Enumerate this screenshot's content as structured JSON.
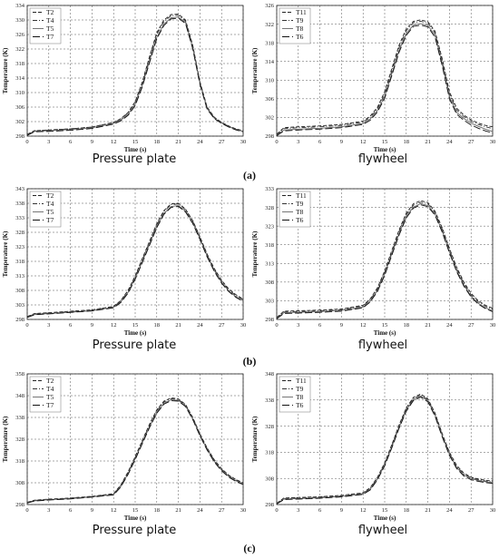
{
  "row_labels": [
    "(a)",
    "(b)",
    "(c)"
  ],
  "chart_data": [
    {
      "type": "line",
      "caption": "Pressure plate",
      "xlabel": "Time (s)",
      "ylabel": "Temperature (K)",
      "xlim": [
        0,
        30
      ],
      "ylim": [
        298,
        334
      ],
      "xticks": [
        0,
        3,
        6,
        9,
        12,
        15,
        18,
        21,
        24,
        27,
        30
      ],
      "yticks": [
        298,
        302,
        306,
        310,
        314,
        318,
        322,
        326,
        330,
        334
      ],
      "grid": true,
      "legend": "top-left",
      "x": [
        0,
        1,
        3,
        6,
        9,
        12,
        13,
        14,
        15,
        16,
        17,
        18,
        19,
        20,
        21,
        22,
        23,
        24,
        25,
        26,
        27,
        28,
        29,
        30
      ],
      "series": [
        {
          "name": "T2",
          "dash": "dash",
          "values": [
            298.5,
            299.5,
            299.7,
            300.0,
            300.5,
            301.8,
            302.8,
            304.5,
            307.5,
            313.0,
            320.0,
            326.5,
            330.0,
            331.5,
            331.6,
            330.0,
            323.0,
            313.0,
            306.0,
            303.2,
            301.8,
            300.8,
            300.0,
            299.5
          ]
        },
        {
          "name": "T4",
          "dash": "dashdot",
          "values": [
            298.4,
            299.4,
            299.7,
            300.0,
            300.5,
            301.7,
            302.7,
            304.4,
            307.2,
            312.6,
            319.5,
            326.0,
            329.6,
            331.2,
            331.3,
            329.7,
            322.7,
            312.8,
            305.8,
            303.0,
            301.7,
            300.7,
            299.9,
            299.4
          ]
        },
        {
          "name": "T5",
          "dash": "solid",
          "values": [
            298.3,
            299.3,
            299.5,
            299.8,
            300.3,
            301.5,
            302.4,
            304.0,
            306.8,
            312.0,
            318.8,
            325.2,
            328.9,
            330.6,
            330.8,
            329.3,
            322.3,
            312.5,
            305.6,
            302.9,
            301.6,
            300.6,
            299.8,
            299.3
          ]
        },
        {
          "name": "T7",
          "dash": "longdash",
          "values": [
            298.2,
            299.2,
            299.3,
            299.6,
            300.1,
            301.3,
            302.2,
            303.7,
            306.4,
            311.6,
            318.3,
            324.8,
            328.5,
            330.3,
            330.5,
            329.0,
            322.0,
            312.2,
            305.4,
            302.8,
            301.5,
            300.5,
            299.7,
            299.2
          ]
        }
      ]
    },
    {
      "type": "line",
      "caption": "flywheel",
      "xlabel": "Time (s)",
      "ylabel": "Temperature (K)",
      "xlim": [
        0,
        30
      ],
      "ylim": [
        298,
        326
      ],
      "xticks": [
        0,
        3,
        6,
        9,
        12,
        15,
        18,
        21,
        24,
        27,
        30
      ],
      "yticks": [
        298,
        302,
        306,
        310,
        314,
        318,
        322,
        326
      ],
      "grid": true,
      "legend": "top-left",
      "x": [
        0,
        1,
        3,
        6,
        9,
        12,
        13,
        14,
        15,
        16,
        17,
        18,
        19,
        20,
        21,
        22,
        23,
        24,
        25,
        26,
        27,
        28,
        29,
        30
      ],
      "series": [
        {
          "name": "T11",
          "dash": "dash",
          "values": [
            298.4,
            299.8,
            300.0,
            300.2,
            300.5,
            301.2,
            302.3,
            304.2,
            307.5,
            312.5,
            317.5,
            321.0,
            322.6,
            322.9,
            322.5,
            320.5,
            314.5,
            307.5,
            304.0,
            302.5,
            301.5,
            300.8,
            300.3,
            300.0
          ]
        },
        {
          "name": "T9",
          "dash": "dashdot",
          "values": [
            298.3,
            299.6,
            299.8,
            300.0,
            300.3,
            301.0,
            302.0,
            303.9,
            307.0,
            312.0,
            317.0,
            320.6,
            322.3,
            322.6,
            322.2,
            320.1,
            314.0,
            307.0,
            303.6,
            302.2,
            301.2,
            300.5,
            300.0,
            299.6
          ]
        },
        {
          "name": "T8",
          "dash": "solid",
          "values": [
            298.2,
            299.3,
            299.5,
            299.7,
            300.0,
            300.7,
            301.7,
            303.5,
            306.5,
            311.4,
            316.4,
            320.0,
            321.8,
            322.1,
            321.7,
            319.6,
            313.4,
            306.4,
            303.1,
            301.8,
            300.8,
            300.1,
            299.5,
            299.0
          ]
        },
        {
          "name": "T6",
          "dash": "longdash",
          "values": [
            298.1,
            299.1,
            299.3,
            299.5,
            299.8,
            300.5,
            301.4,
            303.2,
            306.1,
            311.0,
            316.0,
            319.6,
            321.5,
            321.8,
            321.4,
            319.2,
            313.0,
            306.0,
            302.7,
            301.4,
            300.4,
            299.7,
            299.1,
            298.7
          ]
        }
      ]
    },
    {
      "type": "line",
      "caption": "Pressure plate",
      "xlabel": "Time (s)",
      "ylabel": "Temperature (K)",
      "xlim": [
        0,
        30
      ],
      "ylim": [
        298,
        343
      ],
      "xticks": [
        0,
        3,
        6,
        9,
        12,
        15,
        18,
        21,
        24,
        27,
        30
      ],
      "yticks": [
        298,
        303,
        308,
        313,
        318,
        323,
        328,
        333,
        338,
        343
      ],
      "grid": true,
      "legend": "top-left",
      "x": [
        0,
        1,
        3,
        6,
        9,
        12,
        13,
        14,
        15,
        16,
        17,
        18,
        19,
        20,
        21,
        22,
        23,
        24,
        25,
        26,
        27,
        28,
        29,
        30
      ],
      "series": [
        {
          "name": "T2",
          "dash": "dash",
          "values": [
            299.0,
            300.0,
            300.3,
            300.8,
            301.3,
            302.5,
            304.5,
            308.0,
            313.0,
            319.0,
            325.0,
            331.0,
            335.5,
            337.8,
            338.0,
            336.0,
            332.0,
            326.5,
            320.5,
            315.5,
            311.5,
            308.5,
            306.5,
            305.0
          ]
        },
        {
          "name": "T4",
          "dash": "dashdot",
          "values": [
            298.9,
            299.9,
            300.2,
            300.7,
            301.2,
            302.4,
            304.3,
            307.7,
            312.7,
            318.6,
            324.6,
            330.6,
            335.2,
            337.5,
            337.8,
            335.8,
            331.8,
            326.2,
            320.2,
            315.2,
            311.2,
            308.2,
            306.2,
            304.8
          ]
        },
        {
          "name": "T5",
          "dash": "solid",
          "values": [
            298.8,
            299.7,
            300.0,
            300.5,
            301.0,
            302.2,
            304.0,
            307.3,
            312.2,
            318.0,
            324.0,
            330.0,
            334.5,
            336.9,
            337.2,
            335.3,
            331.3,
            325.8,
            319.8,
            314.8,
            310.8,
            307.8,
            305.8,
            304.4
          ]
        },
        {
          "name": "T7",
          "dash": "longdash",
          "values": [
            298.7,
            299.6,
            299.9,
            300.4,
            300.9,
            302.0,
            303.8,
            307.0,
            311.8,
            317.6,
            323.6,
            329.6,
            334.2,
            336.6,
            336.9,
            335.0,
            331.0,
            325.5,
            319.5,
            314.5,
            310.5,
            307.6,
            305.6,
            304.2
          ]
        }
      ]
    },
    {
      "type": "line",
      "caption": "flywheel",
      "xlabel": "Time (s)",
      "ylabel": "Temperature (K)",
      "xlim": [
        0,
        30
      ],
      "ylim": [
        298,
        333
      ],
      "xticks": [
        0,
        3,
        6,
        9,
        12,
        15,
        18,
        21,
        24,
        27,
        30
      ],
      "yticks": [
        298,
        303,
        308,
        313,
        318,
        323,
        328,
        333
      ],
      "grid": true,
      "legend": "top-left",
      "x": [
        0,
        1,
        3,
        6,
        9,
        12,
        13,
        14,
        15,
        16,
        17,
        18,
        19,
        20,
        21,
        22,
        23,
        24,
        25,
        26,
        27,
        28,
        29,
        30
      ],
      "series": [
        {
          "name": "T11",
          "dash": "dash",
          "values": [
            298.5,
            300.2,
            300.3,
            300.5,
            300.8,
            301.8,
            303.5,
            306.5,
            311.0,
            316.5,
            322.0,
            326.5,
            329.0,
            329.8,
            329.3,
            327.0,
            322.5,
            317.0,
            312.0,
            308.0,
            305.0,
            303.0,
            301.8,
            301.0
          ]
        },
        {
          "name": "T9",
          "dash": "dashdot",
          "values": [
            298.4,
            300.0,
            300.1,
            300.3,
            300.6,
            301.6,
            303.3,
            306.2,
            310.7,
            316.1,
            321.6,
            326.1,
            328.6,
            329.4,
            329.0,
            326.6,
            322.1,
            316.6,
            311.6,
            307.6,
            304.6,
            302.7,
            301.5,
            300.7
          ]
        },
        {
          "name": "T8",
          "dash": "solid",
          "values": [
            298.3,
            299.8,
            299.9,
            300.1,
            300.4,
            301.3,
            302.9,
            305.8,
            310.2,
            315.6,
            321.0,
            325.6,
            328.1,
            329.0,
            328.5,
            326.2,
            321.6,
            316.1,
            311.1,
            307.2,
            304.2,
            302.3,
            301.1,
            300.3
          ]
        },
        {
          "name": "T6",
          "dash": "longdash",
          "values": [
            298.2,
            299.6,
            299.7,
            299.9,
            300.2,
            301.1,
            302.7,
            305.5,
            309.8,
            315.2,
            320.6,
            325.2,
            327.8,
            328.7,
            328.2,
            325.9,
            321.3,
            315.8,
            310.8,
            306.9,
            304.0,
            302.1,
            300.9,
            300.1
          ]
        }
      ]
    },
    {
      "type": "line",
      "caption": "Pressure plate",
      "xlabel": "Time (s)",
      "ylabel": "Temperature (K)",
      "xlim": [
        0,
        30
      ],
      "ylim": [
        298,
        358
      ],
      "xticks": [
        0,
        3,
        6,
        9,
        12,
        15,
        18,
        21,
        24,
        27,
        30
      ],
      "yticks": [
        298,
        308,
        318,
        328,
        338,
        348,
        358
      ],
      "grid": true,
      "legend": "top-left",
      "x": [
        0,
        1,
        3,
        6,
        9,
        12,
        13,
        14,
        15,
        16,
        17,
        18,
        19,
        20,
        21,
        22,
        23,
        24,
        25,
        26,
        27,
        28,
        29,
        30
      ],
      "series": [
        {
          "name": "T2",
          "dash": "dash",
          "values": [
            299.0,
            300.0,
            300.5,
            301.0,
            301.8,
            303.0,
            307.0,
            313.0,
            320.0,
            327.5,
            335.0,
            341.5,
            345.5,
            347.0,
            346.5,
            344.0,
            338.0,
            330.5,
            324.0,
            318.5,
            314.5,
            311.5,
            309.5,
            308.0
          ]
        },
        {
          "name": "T4",
          "dash": "dashdot",
          "values": [
            298.9,
            299.9,
            300.4,
            300.9,
            301.7,
            302.8,
            306.7,
            312.6,
            319.6,
            327.0,
            334.5,
            341.0,
            345.1,
            346.6,
            346.2,
            343.7,
            337.7,
            330.2,
            323.7,
            318.2,
            314.2,
            311.2,
            309.2,
            307.8
          ]
        },
        {
          "name": "T5",
          "dash": "solid",
          "values": [
            298.8,
            299.7,
            300.2,
            300.7,
            301.5,
            302.6,
            306.3,
            312.1,
            319.0,
            326.4,
            333.8,
            340.3,
            344.5,
            346.1,
            345.8,
            343.3,
            337.3,
            329.8,
            323.3,
            317.8,
            313.8,
            310.9,
            308.9,
            307.5
          ]
        },
        {
          "name": "T7",
          "dash": "longdash",
          "values": [
            298.7,
            299.6,
            300.1,
            300.6,
            301.4,
            302.4,
            306.0,
            311.8,
            318.6,
            326.0,
            333.4,
            339.9,
            344.1,
            345.7,
            345.5,
            343.0,
            337.0,
            329.5,
            323.0,
            317.5,
            313.5,
            310.6,
            308.6,
            307.2
          ]
        }
      ]
    },
    {
      "type": "line",
      "caption": "flywheel",
      "xlabel": "Time (s)",
      "ylabel": "Temperature (K)",
      "xlim": [
        0,
        30
      ],
      "ylim": [
        298,
        348
      ],
      "xticks": [
        0,
        3,
        6,
        9,
        12,
        15,
        18,
        21,
        24,
        27,
        30
      ],
      "yticks": [
        298,
        308,
        318,
        328,
        338,
        348
      ],
      "grid": true,
      "legend": "top-left",
      "x": [
        0,
        1,
        3,
        6,
        9,
        12,
        13,
        14,
        15,
        16,
        17,
        18,
        19,
        20,
        21,
        22,
        23,
        24,
        25,
        26,
        27,
        28,
        29,
        30
      ],
      "series": [
        {
          "name": "T11",
          "dash": "dash",
          "values": [
            298.5,
            300.5,
            300.7,
            301.0,
            301.5,
            302.5,
            304.5,
            308.5,
            314.0,
            321.0,
            328.5,
            335.0,
            339.0,
            340.3,
            338.5,
            333.0,
            325.0,
            318.0,
            313.0,
            310.0,
            308.5,
            307.8,
            307.3,
            307.0
          ]
        },
        {
          "name": "T9",
          "dash": "dashdot",
          "values": [
            298.4,
            300.3,
            300.5,
            300.8,
            301.3,
            302.3,
            304.2,
            308.2,
            313.6,
            320.6,
            328.1,
            334.6,
            338.6,
            339.9,
            338.1,
            332.6,
            324.6,
            317.6,
            312.6,
            309.7,
            308.2,
            307.5,
            307.0,
            306.7
          ]
        },
        {
          "name": "T8",
          "dash": "solid",
          "values": [
            298.3,
            300.1,
            300.3,
            300.6,
            301.1,
            302.1,
            303.9,
            307.8,
            313.2,
            320.1,
            327.6,
            334.1,
            338.2,
            339.5,
            337.7,
            332.2,
            324.2,
            317.2,
            312.2,
            309.3,
            307.9,
            307.2,
            306.7,
            306.4
          ]
        },
        {
          "name": "T6",
          "dash": "longdash",
          "values": [
            298.2,
            299.9,
            300.1,
            300.4,
            300.9,
            301.9,
            303.6,
            307.5,
            312.8,
            319.7,
            327.2,
            333.7,
            337.8,
            339.1,
            337.3,
            331.8,
            323.8,
            316.8,
            311.8,
            308.9,
            307.5,
            306.9,
            306.4,
            306.1
          ]
        }
      ]
    }
  ]
}
